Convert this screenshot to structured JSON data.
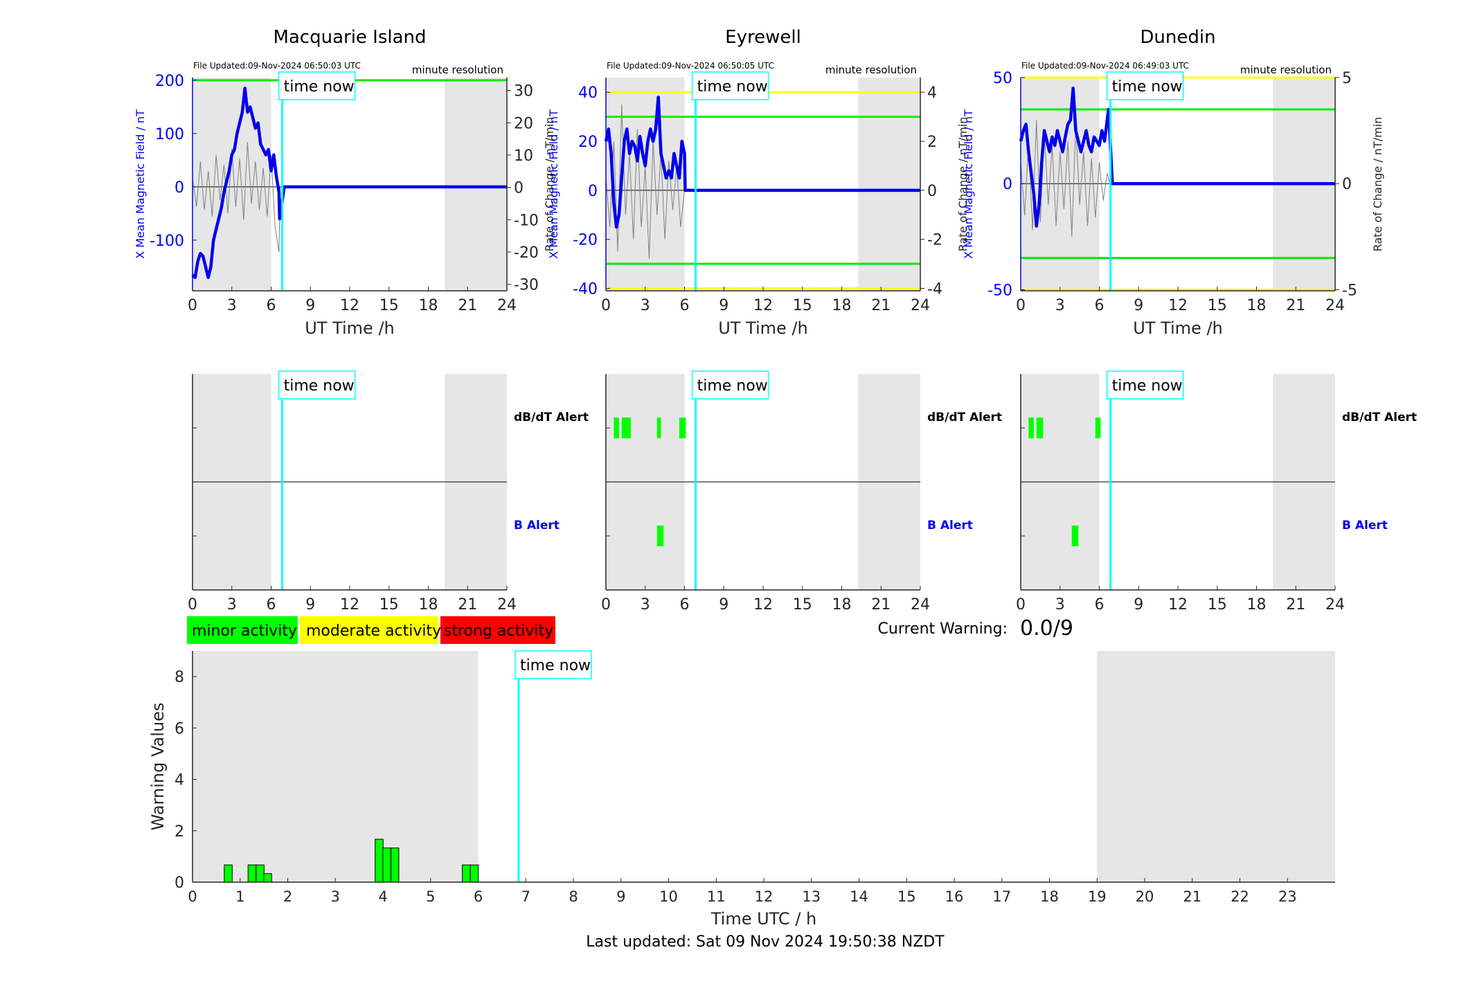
{
  "time_now_label": "time now",
  "footer": {
    "last_updated": "Last updated: Sat 09 Nov 2024 19:50:38 NZDT"
  },
  "legend": {
    "minor": "minor activity",
    "moderate": "moderate activity",
    "strong": "strong activity",
    "colors": {
      "minor": "#00ff00",
      "moderate": "#ffff00",
      "strong": "#ff0000"
    }
  },
  "current_warning": {
    "label": "Current Warning:",
    "value": "0.0/9"
  },
  "colors": {
    "field_line": "#0000ee",
    "rate_line": "#808080",
    "now_line": "#00ffff",
    "threshold_green": "#00ee00",
    "threshold_yellow": "#ffff00",
    "shade": "#e6e6e6",
    "axis_left": "#0000ee"
  },
  "chart_data": [
    {
      "type": "line",
      "title": "Macquarie Island",
      "file_updated": "File Updated:09-Nov-2024 06:50:03 UTC",
      "resolution": "minute resolution",
      "xlabel": "UT Time /h",
      "ylabel": "X Mean Magnetic Field / nT",
      "y2label": "Rate of Change / nT/min",
      "xlim": [
        0,
        24
      ],
      "xticks": [
        0,
        3,
        6,
        9,
        12,
        15,
        18,
        21,
        24
      ],
      "ylim": [
        -195,
        205
      ],
      "yticks": [
        -100,
        0,
        100,
        200
      ],
      "y2lim": [
        -32,
        34
      ],
      "y2ticks": [
        -30,
        -20,
        -10,
        0,
        10,
        20,
        30
      ],
      "shaded_hours": [
        [
          0,
          6
        ],
        [
          19.25,
          24
        ]
      ],
      "time_now": 6.85,
      "thresholds": [
        {
          "y": 200,
          "color": "green"
        }
      ],
      "series": [
        {
          "axis": "left",
          "x": [
            0,
            0.2,
            0.4,
            0.6,
            0.8,
            1.0,
            1.2,
            1.4,
            1.6,
            1.8,
            2.0,
            2.2,
            2.4,
            2.6,
            2.8,
            3.0,
            3.2,
            3.4,
            3.6,
            3.8,
            4.0,
            4.2,
            4.4,
            4.6,
            4.8,
            5.0,
            5.2,
            5.4,
            5.6,
            5.8,
            6.0,
            6.2,
            6.4,
            6.6,
            6.65,
            7,
            24
          ],
          "y": [
            -165,
            -170,
            -140,
            -125,
            -130,
            -150,
            -170,
            -150,
            -100,
            -80,
            -60,
            -40,
            -10,
            10,
            30,
            60,
            70,
            100,
            120,
            140,
            185,
            140,
            150,
            130,
            110,
            120,
            80,
            70,
            60,
            70,
            30,
            60,
            20,
            -10,
            -60,
            0,
            0
          ]
        },
        {
          "axis": "right",
          "x": [
            0,
            0.3,
            0.6,
            0.9,
            1.2,
            1.5,
            1.8,
            2.1,
            2.4,
            2.7,
            3.0,
            3.3,
            3.6,
            3.9,
            4.2,
            4.5,
            4.8,
            5.1,
            5.4,
            5.7,
            6.0,
            6.3,
            6.6,
            6.7
          ],
          "y": [
            3,
            -6,
            8,
            -7,
            5,
            -9,
            10,
            -4,
            7,
            -8,
            12,
            -6,
            9,
            -10,
            14,
            -5,
            8,
            -7,
            6,
            -9,
            10,
            -12,
            -20,
            0
          ]
        }
      ]
    },
    {
      "type": "line",
      "title": "Eyrewell",
      "file_updated": "File Updated:09-Nov-2024 06:50:05 UTC",
      "resolution": "minute resolution",
      "xlabel": "UT Time /h",
      "ylabel": "X Mean Magnetic Field / nT",
      "y2label": "Rate of Change / nT/min",
      "xlim": [
        0,
        24
      ],
      "xticks": [
        0,
        3,
        6,
        9,
        12,
        15,
        18,
        21,
        24
      ],
      "ylim": [
        -41,
        46
      ],
      "yticks": [
        -40,
        -20,
        0,
        20,
        40
      ],
      "y2lim": [
        -4.1,
        4.6
      ],
      "y2ticks": [
        -4,
        -2,
        0,
        2,
        4
      ],
      "shaded_hours": [
        [
          0,
          6
        ],
        [
          19.25,
          24
        ]
      ],
      "time_now": 6.85,
      "thresholds": [
        {
          "y": 40,
          "color": "yellow"
        },
        {
          "y": 30,
          "color": "green"
        },
        {
          "y": -30,
          "color": "green"
        },
        {
          "y": -40,
          "color": "yellow"
        }
      ],
      "series": [
        {
          "axis": "left",
          "x": [
            0,
            0.2,
            0.4,
            0.6,
            0.8,
            1.0,
            1.2,
            1.4,
            1.6,
            1.8,
            2.0,
            2.2,
            2.4,
            2.6,
            2.8,
            3.0,
            3.2,
            3.4,
            3.6,
            3.8,
            4.0,
            4.2,
            4.4,
            4.6,
            4.8,
            5.0,
            5.2,
            5.4,
            5.6,
            5.8,
            6.0,
            6.05,
            24
          ],
          "y": [
            20,
            25,
            15,
            -5,
            -15,
            -10,
            5,
            20,
            25,
            15,
            20,
            18,
            12,
            22,
            15,
            10,
            20,
            25,
            20,
            25,
            38,
            15,
            10,
            5,
            8,
            5,
            15,
            10,
            5,
            20,
            15,
            0,
            0
          ]
        },
        {
          "axis": "right",
          "x": [
            0,
            0.3,
            0.6,
            0.9,
            1.2,
            1.5,
            1.8,
            2.1,
            2.4,
            2.7,
            3.0,
            3.3,
            3.6,
            3.9,
            4.2,
            4.5,
            4.8,
            5.1,
            5.4,
            5.7,
            6.0
          ],
          "y": [
            0.5,
            -1.5,
            2,
            -2.5,
            3.5,
            -1,
            1.5,
            -2,
            2.5,
            -1.5,
            1,
            -2.8,
            2,
            -1,
            1.5,
            -2,
            1.2,
            -0.8,
            1,
            -1.5,
            0
          ]
        }
      ]
    },
    {
      "type": "line",
      "title": "Dunedin",
      "file_updated": "File Updated:09-Nov-2024 06:49:03 UTC",
      "resolution": "minute resolution",
      "xlabel": "UT Time /h",
      "ylabel": "X Mean Magnetic Field / nT",
      "y2label": "Rate of Change / nT/min",
      "xlim": [
        0,
        24
      ],
      "xticks": [
        0,
        3,
        6,
        9,
        12,
        15,
        18,
        21,
        24
      ],
      "ylim": [
        -50.5,
        50
      ],
      "yticks": [
        -50,
        0,
        50
      ],
      "y2lim": [
        -5.05,
        5
      ],
      "y2ticks": [
        -5,
        0,
        5
      ],
      "shaded_hours": [
        [
          0,
          6
        ],
        [
          19.25,
          24
        ]
      ],
      "time_now": 6.85,
      "thresholds": [
        {
          "y": 50,
          "color": "yellow"
        },
        {
          "y": 35,
          "color": "green"
        },
        {
          "y": -35,
          "color": "green"
        },
        {
          "y": -50,
          "color": "yellow"
        }
      ],
      "series": [
        {
          "axis": "left",
          "x": [
            0,
            0.2,
            0.4,
            0.6,
            0.8,
            1.0,
            1.2,
            1.4,
            1.6,
            1.8,
            2.0,
            2.2,
            2.4,
            2.6,
            2.8,
            3.0,
            3.2,
            3.4,
            3.6,
            3.8,
            4.0,
            4.2,
            4.4,
            4.6,
            4.8,
            5.0,
            5.2,
            5.4,
            5.6,
            5.8,
            6.0,
            6.2,
            6.4,
            6.6,
            6.7,
            7,
            24
          ],
          "y": [
            20,
            25,
            28,
            15,
            5,
            -5,
            -20,
            -10,
            10,
            25,
            20,
            15,
            22,
            18,
            25,
            20,
            15,
            22,
            28,
            30,
            45,
            25,
            20,
            15,
            20,
            25,
            18,
            15,
            22,
            20,
            18,
            25,
            20,
            30,
            35,
            0,
            0
          ]
        },
        {
          "axis": "right",
          "x": [
            0,
            0.3,
            0.6,
            0.9,
            1.2,
            1.5,
            1.8,
            2.1,
            2.4,
            2.7,
            3.0,
            3.3,
            3.6,
            3.9,
            4.2,
            4.5,
            4.8,
            5.1,
            5.4,
            5.7,
            6.0,
            6.3,
            6.6,
            6.8
          ],
          "y": [
            1,
            -1.5,
            2,
            -2.2,
            3,
            -1.8,
            2.5,
            -1,
            1.8,
            -2,
            1.5,
            -1.2,
            2,
            -2.5,
            2.8,
            -1,
            1.5,
            -2,
            1.2,
            -1.6,
            1,
            -0.8,
            0.5,
            0
          ]
        }
      ]
    },
    {
      "type": "bar",
      "panel": "alerts",
      "station": "Macquarie Island",
      "rows": [
        "dB/dT Alert",
        "B Alert"
      ],
      "xlim": [
        0,
        24
      ],
      "xticks": [
        0,
        3,
        6,
        9,
        12,
        15,
        18,
        21,
        24
      ],
      "shaded_hours": [
        [
          0,
          6
        ],
        [
          19.25,
          24
        ]
      ],
      "time_now": 6.85,
      "dbdt_alerts": [],
      "b_alerts": []
    },
    {
      "type": "bar",
      "panel": "alerts",
      "station": "Eyrewell",
      "rows": [
        "dB/dT Alert",
        "B Alert"
      ],
      "xlim": [
        0,
        24
      ],
      "xticks": [
        0,
        3,
        6,
        9,
        12,
        15,
        18,
        21,
        24
      ],
      "shaded_hours": [
        [
          0,
          6
        ],
        [
          19.25,
          24
        ]
      ],
      "time_now": 6.85,
      "dbdt_alerts": [
        [
          0.6,
          1.0
        ],
        [
          1.2,
          1.9
        ],
        [
          3.9,
          4.2
        ],
        [
          5.6,
          6.1
        ]
      ],
      "b_alerts": [
        [
          3.9,
          4.4
        ]
      ]
    },
    {
      "type": "bar",
      "panel": "alerts",
      "station": "Dunedin",
      "rows": [
        "dB/dT Alert",
        "B Alert"
      ],
      "xlim": [
        0,
        24
      ],
      "xticks": [
        0,
        3,
        6,
        9,
        12,
        15,
        18,
        21,
        24
      ],
      "shaded_hours": [
        [
          0,
          6
        ],
        [
          19.25,
          24
        ]
      ],
      "time_now": 6.85,
      "dbdt_alerts": [
        [
          0.6,
          1.0
        ],
        [
          1.2,
          1.7
        ],
        [
          5.7,
          6.1
        ]
      ],
      "b_alerts": [
        [
          3.9,
          4.4
        ]
      ]
    },
    {
      "type": "bar",
      "panel": "warning",
      "xlabel": "Time UTC / h",
      "ylabel": "Warning Values",
      "xlim": [
        0,
        24
      ],
      "xticks": [
        0,
        1,
        2,
        3,
        4,
        5,
        6,
        7,
        8,
        9,
        10,
        11,
        12,
        13,
        14,
        15,
        16,
        17,
        18,
        19,
        20,
        21,
        22,
        23
      ],
      "ylim": [
        0,
        9
      ],
      "yticks": [
        0,
        2,
        4,
        6,
        8
      ],
      "shaded_hours": [
        [
          0,
          6
        ],
        [
          19,
          24
        ]
      ],
      "time_now": 6.85,
      "bar_width": 0.167,
      "bars_x": [
        0.75,
        1.25,
        1.42,
        1.58,
        3.92,
        4.08,
        4.25,
        5.75,
        5.92
      ],
      "bars_y": [
        0.67,
        0.67,
        0.67,
        0.33,
        1.67,
        1.33,
        1.33,
        0.67,
        0.67
      ]
    }
  ]
}
